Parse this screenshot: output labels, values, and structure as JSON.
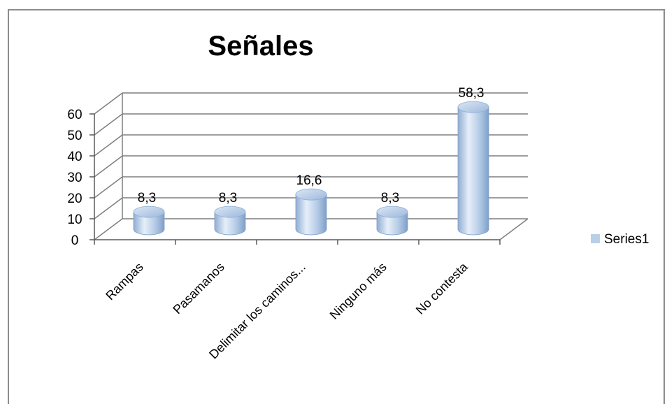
{
  "chart_data": {
    "type": "bar",
    "style": "3d-cylinder",
    "title": "Señales",
    "xlabel": "",
    "ylabel": "",
    "categories": [
      "Rampas",
      "Pasamanos",
      "Delimitar los caminos...",
      "Ninguno más",
      "No contesta"
    ],
    "series": [
      {
        "name": "Series1",
        "values": [
          8.3,
          8.3,
          16.6,
          8.3,
          58.3
        ],
        "labels": [
          "8,3",
          "8,3",
          "16,6",
          "8,3",
          "58,3"
        ]
      }
    ],
    "ylim": [
      0,
      60
    ],
    "yticks": [
      "0",
      "10",
      "20",
      "30",
      "40",
      "50",
      "60"
    ],
    "grid": true,
    "legend_position": "right",
    "colors": {
      "bar": "#b4cbe6",
      "bar_dark": "#7f9fc8",
      "bar_light": "#e3edf8",
      "grid": "#7f7f7f",
      "legend_swatch": "#b9cfe8"
    }
  }
}
